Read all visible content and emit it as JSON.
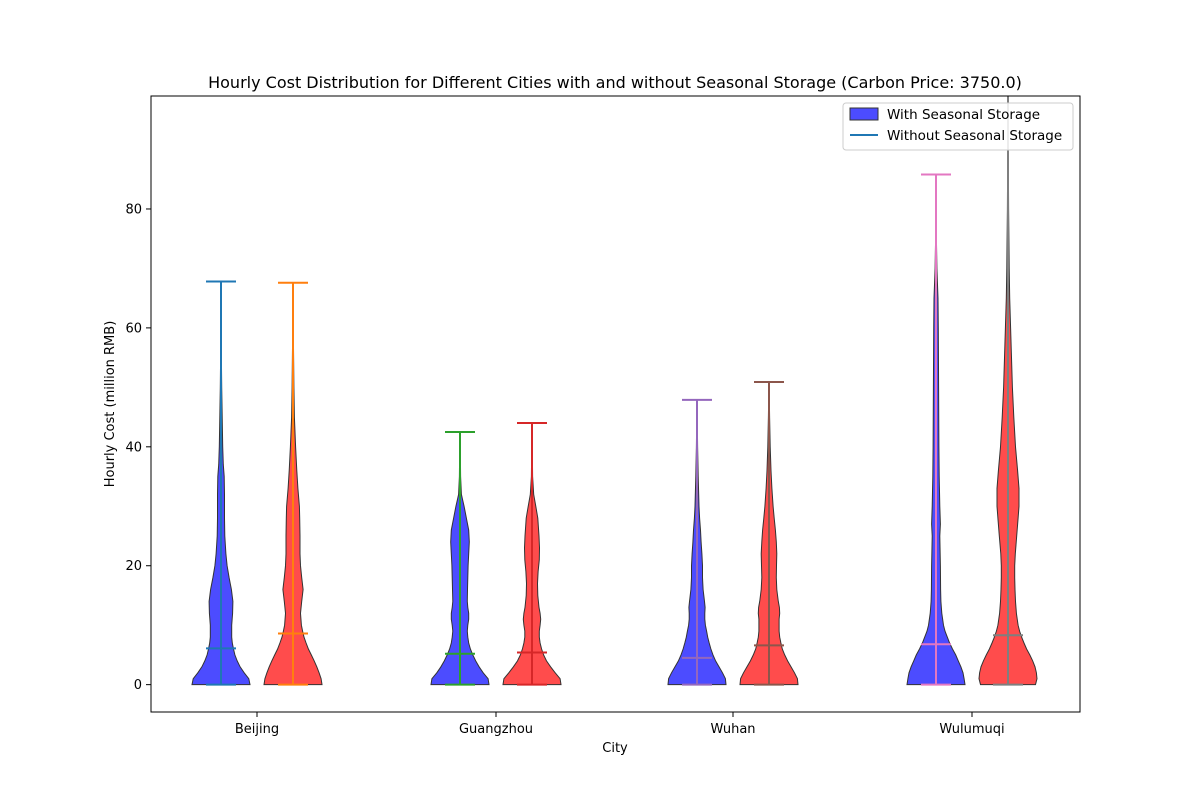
{
  "chart_data": {
    "type": "violin",
    "title": "Hourly Cost Distribution for Different Cities with and without Seasonal Storage (Carbon Price: 3750.0)",
    "xlabel": "City",
    "ylabel": "Hourly Cost (million RMB)",
    "ylim": [
      -4.6,
      99
    ],
    "yticks": [
      0,
      20,
      40,
      60,
      80
    ],
    "categories": [
      "Beijing",
      "Guangzhou",
      "Wuhan",
      "Wulumuqi"
    ],
    "legend": {
      "position": "top-right",
      "entries": [
        {
          "label": "With Seasonal Storage",
          "kind": "patch",
          "color": "#0000ff"
        },
        {
          "label": "Without Seasonal Storage",
          "kind": "line",
          "color": "#1f77b4"
        }
      ]
    },
    "series": [
      {
        "name": "With Seasonal Storage",
        "fill": "#0000ff",
        "violins": [
          {
            "category": "Beijing",
            "min": 0,
            "max": 67.8,
            "median": 6.1,
            "line_color": "#1f77b4",
            "profile": [
              [
                0,
                1.0
              ],
              [
                1,
                0.96
              ],
              [
                2,
                0.8
              ],
              [
                3,
                0.66
              ],
              [
                4,
                0.56
              ],
              [
                5,
                0.48
              ],
              [
                6,
                0.43
              ],
              [
                7,
                0.39
              ],
              [
                8,
                0.37
              ],
              [
                10,
                0.37
              ],
              [
                12,
                0.4
              ],
              [
                14,
                0.41
              ],
              [
                16,
                0.36
              ],
              [
                18,
                0.28
              ],
              [
                20,
                0.21
              ],
              [
                22,
                0.17
              ],
              [
                25,
                0.13
              ],
              [
                28,
                0.12
              ],
              [
                32,
                0.12
              ],
              [
                35,
                0.11
              ],
              [
                37,
                0.08
              ],
              [
                40,
                0.06
              ],
              [
                45,
                0.04
              ],
              [
                50,
                0.025
              ],
              [
                55,
                0.015
              ],
              [
                60,
                0.01
              ],
              [
                67.8,
                0.005
              ]
            ]
          },
          {
            "category": "Guangzhou",
            "min": 0,
            "max": 42.5,
            "median": 5.2,
            "line_color": "#2ca02c",
            "profile": [
              [
                0,
                1.0
              ],
              [
                1,
                0.97
              ],
              [
                2,
                0.8
              ],
              [
                3,
                0.66
              ],
              [
                4,
                0.54
              ],
              [
                5,
                0.44
              ],
              [
                6,
                0.36
              ],
              [
                7,
                0.3
              ],
              [
                8,
                0.27
              ],
              [
                9,
                0.25
              ],
              [
                10,
                0.27
              ],
              [
                11,
                0.3
              ],
              [
                12,
                0.3
              ],
              [
                13,
                0.27
              ],
              [
                14,
                0.25
              ],
              [
                16,
                0.26
              ],
              [
                18,
                0.27
              ],
              [
                20,
                0.28
              ],
              [
                22,
                0.3
              ],
              [
                24,
                0.32
              ],
              [
                26,
                0.3
              ],
              [
                28,
                0.22
              ],
              [
                30,
                0.14
              ],
              [
                32,
                0.05
              ],
              [
                35,
                0.02
              ],
              [
                40,
                0.01
              ],
              [
                42.5,
                0.005
              ]
            ]
          },
          {
            "category": "Wuhan",
            "min": 0,
            "max": 47.9,
            "median": 4.5,
            "line_color": "#9467bd",
            "profile": [
              [
                0,
                1.0
              ],
              [
                1,
                0.98
              ],
              [
                2,
                0.88
              ],
              [
                3,
                0.76
              ],
              [
                4,
                0.64
              ],
              [
                5,
                0.55
              ],
              [
                6,
                0.48
              ],
              [
                7,
                0.42
              ],
              [
                8,
                0.37
              ],
              [
                9,
                0.33
              ],
              [
                10,
                0.29
              ],
              [
                11,
                0.27
              ],
              [
                12,
                0.27
              ],
              [
                13,
                0.28
              ],
              [
                14,
                0.26
              ],
              [
                16,
                0.21
              ],
              [
                18,
                0.19
              ],
              [
                20,
                0.19
              ],
              [
                22,
                0.17
              ],
              [
                24,
                0.14
              ],
              [
                26,
                0.12
              ],
              [
                28,
                0.09
              ],
              [
                30,
                0.07
              ],
              [
                35,
                0.04
              ],
              [
                40,
                0.02
              ],
              [
                47.9,
                0.005
              ]
            ]
          },
          {
            "category": "Wulumuqi",
            "min": 0,
            "max": 85.8,
            "median": 6.8,
            "line_color": "#e377c2",
            "profile": [
              [
                0,
                1.0
              ],
              [
                1,
                0.97
              ],
              [
                2,
                0.93
              ],
              [
                3,
                0.86
              ],
              [
                4,
                0.77
              ],
              [
                5,
                0.68
              ],
              [
                6,
                0.57
              ],
              [
                7,
                0.47
              ],
              [
                8,
                0.39
              ],
              [
                9,
                0.31
              ],
              [
                10,
                0.26
              ],
              [
                12,
                0.2
              ],
              [
                14,
                0.17
              ],
              [
                16,
                0.16
              ],
              [
                20,
                0.15
              ],
              [
                25,
                0.13
              ],
              [
                27,
                0.15
              ],
              [
                30,
                0.13
              ],
              [
                35,
                0.11
              ],
              [
                40,
                0.1
              ],
              [
                50,
                0.09
              ],
              [
                60,
                0.08
              ],
              [
                65,
                0.07
              ],
              [
                70,
                0.03
              ],
              [
                75,
                0.015
              ],
              [
                80,
                0.008
              ],
              [
                85.8,
                0.003
              ]
            ]
          }
        ]
      },
      {
        "name": "Without Seasonal Storage",
        "fill": "#ff0000",
        "violins": [
          {
            "category": "Beijing",
            "min": 0,
            "max": 67.6,
            "median": 8.6,
            "line_color": "#ff7f0e",
            "profile": [
              [
                0,
                1.0
              ],
              [
                1,
                0.97
              ],
              [
                2,
                0.9
              ],
              [
                3,
                0.82
              ],
              [
                4,
                0.73
              ],
              [
                5,
                0.63
              ],
              [
                6,
                0.53
              ],
              [
                7,
                0.45
              ],
              [
                8,
                0.38
              ],
              [
                9,
                0.33
              ],
              [
                10,
                0.29
              ],
              [
                12,
                0.26
              ],
              [
                14,
                0.3
              ],
              [
                16,
                0.35
              ],
              [
                18,
                0.3
              ],
              [
                20,
                0.26
              ],
              [
                22,
                0.24
              ],
              [
                25,
                0.24
              ],
              [
                28,
                0.23
              ],
              [
                30,
                0.22
              ],
              [
                33,
                0.17
              ],
              [
                36,
                0.13
              ],
              [
                40,
                0.09
              ],
              [
                45,
                0.05
              ],
              [
                50,
                0.03
              ],
              [
                55,
                0.02
              ],
              [
                60,
                0.01
              ],
              [
                67.6,
                0.005
              ]
            ]
          },
          {
            "category": "Guangzhou",
            "min": 0,
            "max": 44.0,
            "median": 5.4,
            "line_color": "#d62728",
            "profile": [
              [
                0,
                1.0
              ],
              [
                1,
                0.97
              ],
              [
                2,
                0.8
              ],
              [
                3,
                0.64
              ],
              [
                4,
                0.5
              ],
              [
                5,
                0.4
              ],
              [
                6,
                0.33
              ],
              [
                7,
                0.28
              ],
              [
                8,
                0.25
              ],
              [
                9,
                0.25
              ],
              [
                10,
                0.28
              ],
              [
                11,
                0.3
              ],
              [
                12,
                0.28
              ],
              [
                13,
                0.24
              ],
              [
                15,
                0.2
              ],
              [
                17,
                0.19
              ],
              [
                19,
                0.21
              ],
              [
                21,
                0.25
              ],
              [
                23,
                0.26
              ],
              [
                25,
                0.24
              ],
              [
                28,
                0.2
              ],
              [
                30,
                0.13
              ],
              [
                32,
                0.06
              ],
              [
                35,
                0.02
              ],
              [
                40,
                0.01
              ],
              [
                44,
                0.005
              ]
            ]
          },
          {
            "category": "Wuhan",
            "min": 0,
            "max": 50.9,
            "median": 6.6,
            "line_color": "#8c564b",
            "profile": [
              [
                0,
                1.0
              ],
              [
                1,
                0.98
              ],
              [
                2,
                0.88
              ],
              [
                3,
                0.76
              ],
              [
                4,
                0.64
              ],
              [
                5,
                0.54
              ],
              [
                6,
                0.46
              ],
              [
                7,
                0.41
              ],
              [
                8,
                0.37
              ],
              [
                9,
                0.35
              ],
              [
                10,
                0.35
              ],
              [
                11,
                0.35
              ],
              [
                12,
                0.37
              ],
              [
                13,
                0.36
              ],
              [
                14,
                0.32
              ],
              [
                16,
                0.27
              ],
              [
                18,
                0.25
              ],
              [
                20,
                0.26
              ],
              [
                22,
                0.27
              ],
              [
                24,
                0.25
              ],
              [
                26,
                0.22
              ],
              [
                28,
                0.18
              ],
              [
                30,
                0.14
              ],
              [
                33,
                0.1
              ],
              [
                36,
                0.07
              ],
              [
                40,
                0.04
              ],
              [
                45,
                0.02
              ],
              [
                50.9,
                0.005
              ]
            ]
          },
          {
            "category": "Wulumuqi",
            "min": 0,
            "max": 99,
            "median": 8.3,
            "line_color": "#7f7f7f",
            "profile": [
              [
                0,
                0.95
              ],
              [
                1,
                1.0
              ],
              [
                2,
                0.98
              ],
              [
                3,
                0.93
              ],
              [
                4,
                0.85
              ],
              [
                5,
                0.75
              ],
              [
                6,
                0.64
              ],
              [
                7,
                0.55
              ],
              [
                8,
                0.47
              ],
              [
                9,
                0.4
              ],
              [
                10,
                0.35
              ],
              [
                12,
                0.29
              ],
              [
                14,
                0.26
              ],
              [
                16,
                0.24
              ],
              [
                18,
                0.23
              ],
              [
                20,
                0.23
              ],
              [
                22,
                0.25
              ],
              [
                25,
                0.3
              ],
              [
                28,
                0.35
              ],
              [
                30,
                0.38
              ],
              [
                33,
                0.38
              ],
              [
                36,
                0.33
              ],
              [
                40,
                0.26
              ],
              [
                45,
                0.2
              ],
              [
                50,
                0.15
              ],
              [
                55,
                0.12
              ],
              [
                60,
                0.09
              ],
              [
                65,
                0.06
              ],
              [
                70,
                0.04
              ],
              [
                80,
                0.02
              ],
              [
                90,
                0.01
              ],
              [
                99,
                0.005
              ]
            ]
          }
        ]
      }
    ]
  }
}
